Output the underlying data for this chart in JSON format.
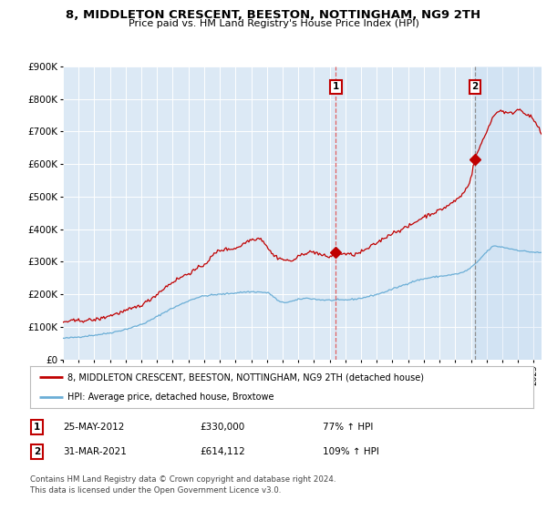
{
  "title": "8, MIDDLETON CRESCENT, BEESTON, NOTTINGHAM, NG9 2TH",
  "subtitle": "Price paid vs. HM Land Registry's House Price Index (HPI)",
  "ylim": [
    0,
    900000
  ],
  "xlim_start": 1995.0,
  "xlim_end": 2025.5,
  "background_color": "#ffffff",
  "plot_bg_color": "#dce9f5",
  "grid_color": "#ffffff",
  "red_line_color": "#c00000",
  "blue_line_color": "#6baed6",
  "dashed_line_color_red": "#e06060",
  "dashed_line_color_grey": "#909090",
  "marker1_date": 2012.39,
  "marker1_value": 330000,
  "marker2_date": 2021.25,
  "marker2_value": 614112,
  "marker1_label": "1",
  "marker2_label": "2",
  "legend_red": "8, MIDDLETON CRESCENT, BEESTON, NOTTINGHAM, NG9 2TH (detached house)",
  "legend_blue": "HPI: Average price, detached house, Broxtowe",
  "table_row1": [
    "1",
    "25-MAY-2012",
    "£330,000",
    "77% ↑ HPI"
  ],
  "table_row2": [
    "2",
    "31-MAR-2021",
    "£614,112",
    "109% ↑ HPI"
  ],
  "footnote": "Contains HM Land Registry data © Crown copyright and database right 2024.\nThis data is licensed under the Open Government Licence v3.0.",
  "ytick_labels": [
    "£0",
    "£100K",
    "£200K",
    "£300K",
    "£400K",
    "£500K",
    "£600K",
    "£700K",
    "£800K",
    "£900K"
  ],
  "ytick_values": [
    0,
    100000,
    200000,
    300000,
    400000,
    500000,
    600000,
    700000,
    800000,
    900000
  ]
}
